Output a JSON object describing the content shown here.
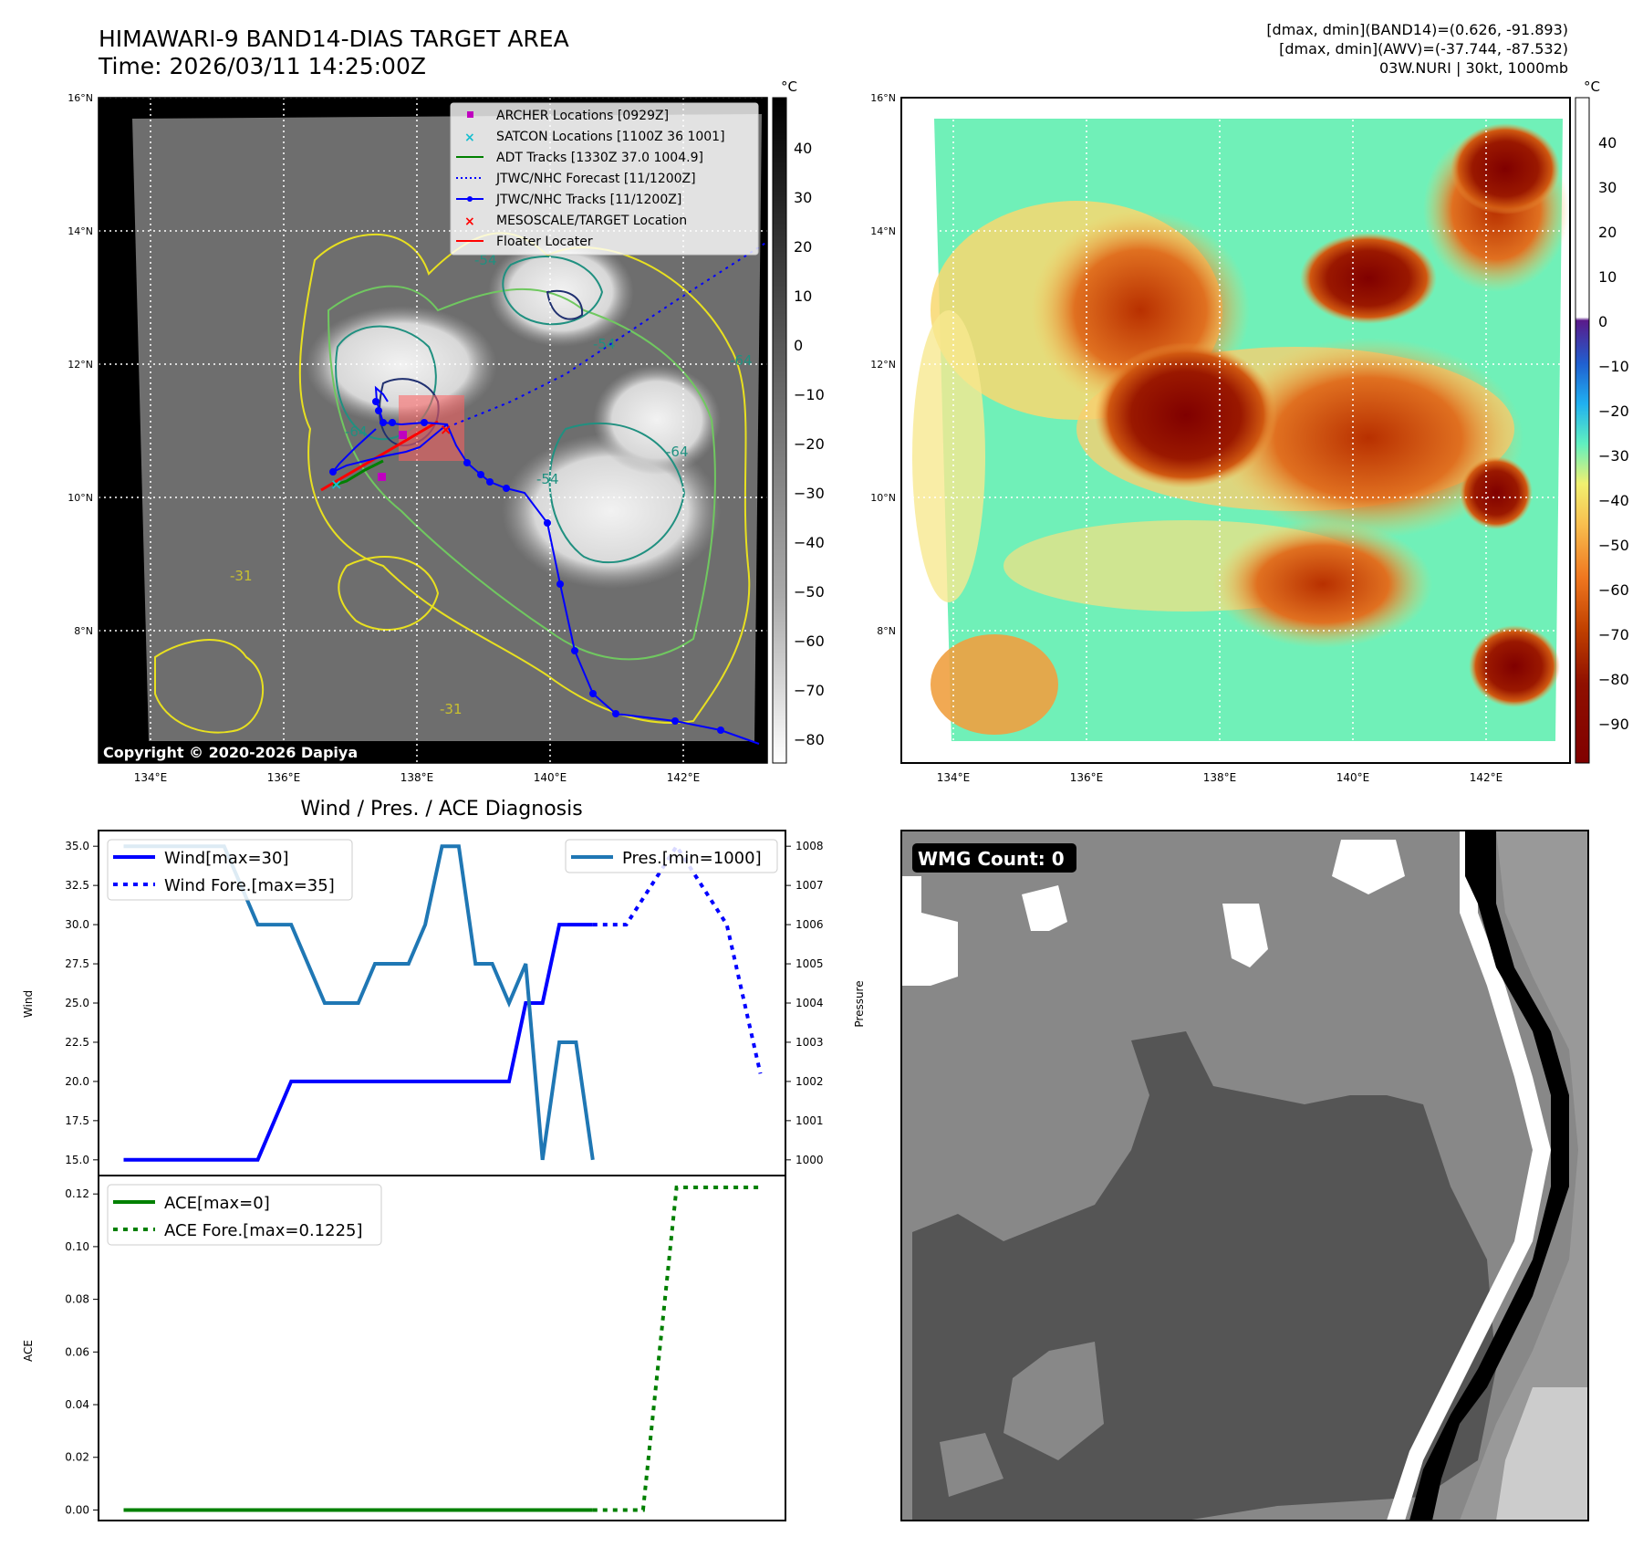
{
  "header": {
    "title_line1": "HIMAWARI-9 BAND14-DIAS TARGET AREA",
    "title_line2": "Time: 2026/03/11 14:25:00Z",
    "info_line1": "[dmax, dmin](BAND14)=(0.626, -91.893)",
    "info_line2": "[dmax, dmin](AWV)=(-37.744, -87.532)",
    "info_line3": "03W.NURI | 30kt, 1000mb"
  },
  "map_axes": {
    "lat_labels": [
      "16°N",
      "14°N",
      "12°N",
      "10°N",
      "8°N"
    ],
    "lon_labels": [
      "134°E",
      "136°E",
      "138°E",
      "140°E",
      "142°E"
    ]
  },
  "ir_panel": {
    "colorbar_unit": "°C",
    "colorbar_ticks": [
      "40",
      "30",
      "20",
      "10",
      "0",
      "−10",
      "−20",
      "−30",
      "−40",
      "−50",
      "−60",
      "−70",
      "−80"
    ],
    "copyright": "Copyright © 2020-2026 Dapiya",
    "contour_labels": [
      "-54",
      "-64",
      "-31",
      "-64",
      "-54",
      "-31",
      "-64",
      "-54"
    ],
    "legend": [
      {
        "label": "ARCHER Locations [0929Z]",
        "color": "#c000c0",
        "marker": "square"
      },
      {
        "label": "SATCON Locations [1100Z 36 1001]",
        "color": "#17becf",
        "marker": "x"
      },
      {
        "label": "ADT Tracks [1330Z 37.0 1004.9]",
        "color": "#008000",
        "marker": "line"
      },
      {
        "label": "JTWC/NHC Forecast [11/1200Z]",
        "color": "#0000ff",
        "marker": "dotted"
      },
      {
        "label": "JTWC/NHC Tracks [11/1200Z]",
        "color": "#0000ff",
        "marker": "dot-line"
      },
      {
        "label": "MESOSCALE/TARGET Location",
        "color": "#ff0000",
        "marker": "x"
      },
      {
        "label": "Floater Locater",
        "color": "#ff0000",
        "marker": "line"
      }
    ]
  },
  "awv_panel": {
    "colorbar_unit": "°C",
    "colorbar_ticks": [
      "40",
      "30",
      "20",
      "10",
      "0",
      "−10",
      "−20",
      "−30",
      "−40",
      "−50",
      "−60",
      "−70",
      "−80",
      "−90"
    ]
  },
  "wmg_panel": {
    "label": "WMG Count: 0"
  },
  "colors": {
    "wind": "#0000ff",
    "pressure": "#1f77b4",
    "ace": "#008000",
    "track": "#0000ff",
    "floater": "#ff0000"
  },
  "chart_data": [
    {
      "type": "line",
      "title": "Wind / Pres. / ACE Diagnosis",
      "ylabel": "Wind",
      "ylabel_right": "Pressure",
      "ylim": [
        14,
        36
      ],
      "ylim_right": [
        999.6,
        1008.4
      ],
      "yticks": [
        "35.0",
        "32.5",
        "30.0",
        "27.5",
        "25.0",
        "22.5",
        "20.0",
        "17.5",
        "15.0"
      ],
      "yticks_right": [
        "1008",
        "1007",
        "1006",
        "1005",
        "1004",
        "1003",
        "1002",
        "1001",
        "1000"
      ],
      "series": [
        {
          "name": "Wind[max=30]",
          "style": "solid",
          "axis": "left",
          "x": [
            0,
            8,
            10,
            23,
            24,
            25,
            26,
            28
          ],
          "values": [
            15,
            15,
            20,
            20,
            25,
            25,
            30,
            30
          ]
        },
        {
          "name": "Wind Fore.[max=35]",
          "style": "dotted",
          "axis": "left",
          "x": [
            28,
            30,
            33,
            36,
            38
          ],
          "values": [
            30,
            30,
            35,
            30,
            20.5
          ]
        },
        {
          "name": "Pres.[min=1000]",
          "style": "solid",
          "axis": "right",
          "x": [
            0,
            6,
            8,
            10,
            12,
            14,
            15,
            17,
            18,
            19,
            20,
            21,
            22,
            23,
            24,
            25,
            26,
            27,
            28
          ],
          "values": [
            1008,
            1008,
            1006,
            1006,
            1004,
            1004,
            1005,
            1005,
            1006,
            1008,
            1008,
            1005,
            1005,
            1004,
            1005,
            1000,
            1003,
            1003,
            1000
          ]
        }
      ]
    },
    {
      "type": "line",
      "ylabel": "ACE",
      "ylim": [
        -0.004,
        0.127
      ],
      "yticks": [
        "0.12",
        "0.10",
        "0.08",
        "0.06",
        "0.04",
        "0.02",
        "0.00"
      ],
      "series": [
        {
          "name": "ACE[max=0]",
          "style": "solid",
          "x": [
            0,
            28
          ],
          "values": [
            0,
            0
          ]
        },
        {
          "name": "ACE Fore.[max=0.1225]",
          "style": "dotted",
          "x": [
            28,
            31,
            33,
            38
          ],
          "values": [
            0,
            0,
            0.1225,
            0.1225
          ]
        }
      ]
    }
  ]
}
